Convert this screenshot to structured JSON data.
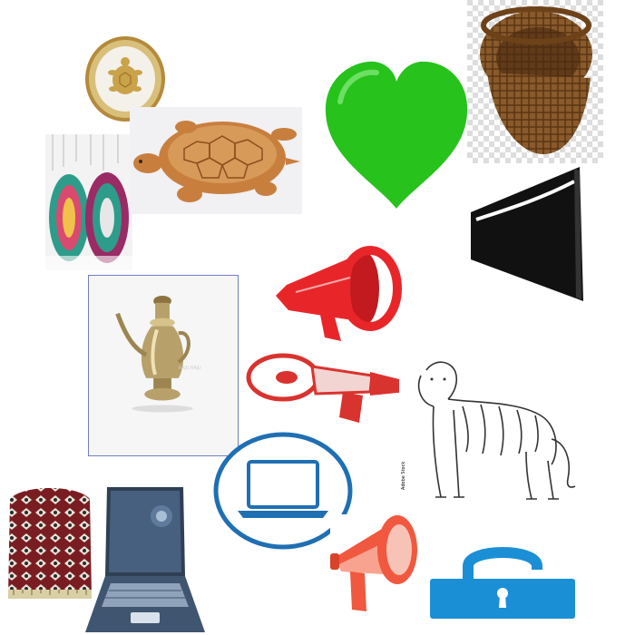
{
  "canvas": {
    "background": "#ffffff"
  },
  "icons": [
    {
      "name": "turtle-medallion-icon",
      "color": "#c9a24a"
    },
    {
      "name": "golden-turtle-icon",
      "color": "#c87f3e"
    },
    {
      "name": "green-heart-icon",
      "color": "#27c21c"
    },
    {
      "name": "wicker-basket-icon",
      "color": "#8a5a2b"
    },
    {
      "name": "hanging-fan-decor-icon",
      "color": "#2e9c8a"
    },
    {
      "name": "speaker-cone-icon",
      "color": "#111111"
    },
    {
      "name": "red-megaphone-icon",
      "color": "#e8262a"
    },
    {
      "name": "red-outline-megaphone-icon",
      "color": "#d9332f"
    },
    {
      "name": "brass-jug-icon",
      "color": "#b8a06a"
    },
    {
      "name": "tiger-sketch-icon",
      "color": "#333333"
    },
    {
      "name": "laptop-circle-icon",
      "color": "#1f6fb3"
    },
    {
      "name": "patterned-cap-icon",
      "color": "#7a1d22"
    },
    {
      "name": "laptop-icon",
      "color": "#3f5570"
    },
    {
      "name": "orange-megaphone-icon",
      "color": "#f0583f"
    },
    {
      "name": "unlocked-padlock-icon",
      "color": "#1b8fd6"
    }
  ]
}
